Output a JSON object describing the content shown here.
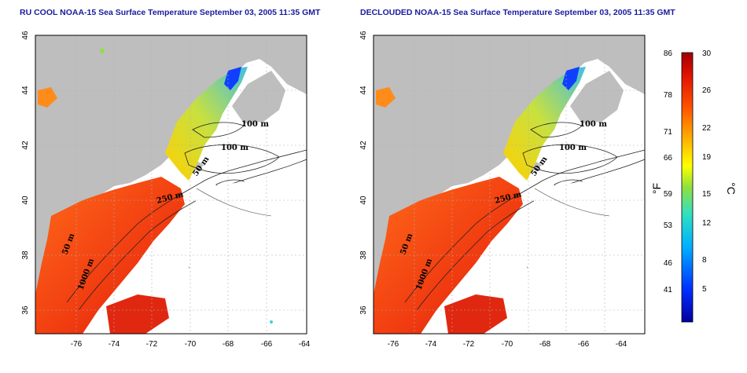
{
  "titles": {
    "left": "RU COOL NOAA-15 Sea Surface Temperature September 03, 2005 11:35 GMT",
    "right": "DECLOUDED NOAA-15 Sea Surface Temperature September 03, 2005 11:35 GMT"
  },
  "map": {
    "lon_ticks": [
      "-76",
      "-74",
      "-72",
      "-70",
      "-68",
      "-66",
      "-64"
    ],
    "lat_ticks": [
      "46",
      "44",
      "42",
      "40",
      "38",
      "36"
    ],
    "contour_labels": [
      "100 m",
      "100 m",
      "50 m",
      "250 m",
      "50 m",
      "1000 m"
    ],
    "colors": {
      "land": "#bebebe",
      "nodata": "#ffffff",
      "grid": "#b0b0b0"
    }
  },
  "colorbar": {
    "fahrenheit_ticks": [
      "86",
      "78",
      "71",
      "66",
      "59",
      "53",
      "46",
      "41"
    ],
    "celsius_ticks": [
      "30",
      "26",
      "22",
      "19",
      "15",
      "12",
      "8",
      "5"
    ],
    "fahrenheit_unit": "°F",
    "celsius_unit": "°C"
  }
}
